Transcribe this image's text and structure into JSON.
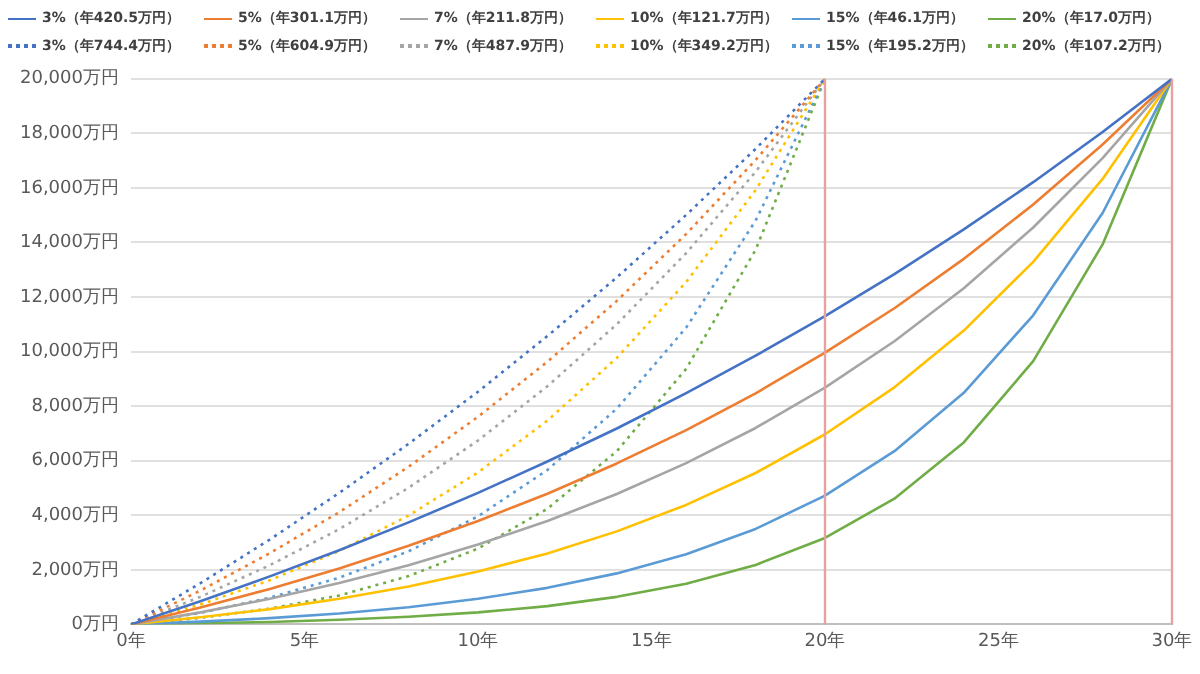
{
  "chart_data": {
    "type": "line",
    "legend": "top",
    "grid": "y",
    "marker": "none",
    "xlim": [
      0,
      30
    ],
    "xticks": [
      {
        "value": 0,
        "label": "0年"
      },
      {
        "value": 5,
        "label": "5年"
      },
      {
        "value": 10,
        "label": "10年"
      },
      {
        "value": 15,
        "label": "15年"
      },
      {
        "value": 20,
        "label": "20年"
      },
      {
        "value": 25,
        "label": "25年"
      },
      {
        "value": 30,
        "label": "30年"
      }
    ],
    "ylim": [
      0,
      20000
    ],
    "yticks": [
      {
        "value": 0,
        "label": "0万円"
      },
      {
        "value": 2000,
        "label": "2,000万円"
      },
      {
        "value": 4000,
        "label": "4,000万円"
      },
      {
        "value": 6000,
        "label": "6,000万円"
      },
      {
        "value": 8000,
        "label": "8,000万円"
      },
      {
        "value": 10000,
        "label": "10,000万円"
      },
      {
        "value": 12000,
        "label": "12,000万円"
      },
      {
        "value": 14000,
        "label": "14,000万円"
      },
      {
        "value": 16000,
        "label": "16,000万円"
      },
      {
        "value": 18000,
        "label": "18,000万円"
      },
      {
        "value": 20000,
        "label": "20,000万円"
      }
    ],
    "ref_lines": [
      {
        "axis": "x",
        "value": 20,
        "color": "#e8a0a0"
      },
      {
        "axis": "x",
        "value": 30,
        "color": "#e8a0a0"
      }
    ],
    "series": [
      {
        "name": "3%（年420.5万円）",
        "color": "#4472c4",
        "line_style": "solid",
        "x": [
          0,
          2,
          4,
          6,
          8,
          10,
          12,
          14,
          16,
          18,
          20,
          22,
          24,
          26,
          28,
          30
        ],
        "values": [
          0,
          850,
          1760,
          2720,
          3740,
          4820,
          5970,
          7180,
          8480,
          9850,
          11300,
          12840,
          14480,
          16210,
          18050,
          20000
        ]
      },
      {
        "name": "5%（年301.1万円）",
        "color": "#ed7d31",
        "line_style": "solid",
        "x": [
          0,
          2,
          4,
          6,
          8,
          10,
          12,
          14,
          16,
          18,
          20,
          22,
          24,
          26,
          28,
          30
        ],
        "values": [
          0,
          620,
          1300,
          2050,
          2880,
          3790,
          4790,
          5900,
          7120,
          8470,
          9960,
          11590,
          13400,
          15390,
          17590,
          20000
        ]
      },
      {
        "name": "7%（年211.8万円）",
        "color": "#a5a5a5",
        "line_style": "solid",
        "x": [
          0,
          2,
          4,
          6,
          8,
          10,
          12,
          14,
          16,
          18,
          20,
          22,
          24,
          26,
          28,
          30
        ],
        "values": [
          0,
          440,
          940,
          1520,
          2170,
          2930,
          3790,
          4780,
          5910,
          7200,
          8680,
          10380,
          12320,
          14550,
          17090,
          20000
        ]
      },
      {
        "name": "10%（年121.7万円）",
        "color": "#ffc000",
        "line_style": "solid",
        "x": [
          0,
          2,
          4,
          6,
          8,
          10,
          12,
          14,
          16,
          18,
          20,
          22,
          24,
          26,
          28,
          30
        ],
        "values": [
          0,
          260,
          560,
          940,
          1390,
          1940,
          2600,
          3410,
          4380,
          5550,
          6970,
          8690,
          10770,
          13290,
          16330,
          20000
        ]
      },
      {
        "name": "15%（年46.1万円）",
        "color": "#5b9bd5",
        "line_style": "solid",
        "x": [
          0,
          2,
          4,
          6,
          8,
          10,
          12,
          14,
          16,
          18,
          20,
          22,
          24,
          26,
          28,
          30
        ],
        "values": [
          0,
          100,
          230,
          400,
          630,
          940,
          1340,
          1870,
          2570,
          3500,
          4720,
          6350,
          8490,
          11330,
          15080,
          20000
        ]
      },
      {
        "name": "20%（年17.0万円）",
        "color": "#70ad47",
        "line_style": "solid",
        "x": [
          0,
          2,
          4,
          6,
          8,
          10,
          12,
          14,
          16,
          18,
          20,
          22,
          24,
          26,
          28,
          30
        ],
        "values": [
          0,
          40,
          90,
          170,
          280,
          440,
          670,
          1010,
          1490,
          2180,
          3170,
          4610,
          6670,
          9650,
          13930,
          20000
        ]
      },
      {
        "name": "3%（年744.4万円）",
        "color": "#4472c4",
        "line_style": "dotted",
        "x": [
          0,
          2,
          4,
          6,
          8,
          10,
          12,
          14,
          16,
          18,
          20
        ],
        "values": [
          0,
          1510,
          3110,
          4820,
          6620,
          8530,
          10570,
          12720,
          15010,
          17430,
          20000
        ]
      },
      {
        "name": "5%（年604.9万円）",
        "color": "#ed7d31",
        "line_style": "dotted",
        "x": [
          0,
          2,
          4,
          6,
          8,
          10,
          12,
          14,
          16,
          18,
          20
        ],
        "values": [
          0,
          1240,
          2610,
          4110,
          5780,
          7610,
          9630,
          11860,
          14310,
          17020,
          20000
        ]
      },
      {
        "name": "7%（年487.9万円）",
        "color": "#a5a5a5",
        "line_style": "dotted",
        "x": [
          0,
          2,
          4,
          6,
          8,
          10,
          12,
          14,
          16,
          18,
          20
        ],
        "values": [
          0,
          1010,
          2170,
          3490,
          5010,
          6740,
          8730,
          11000,
          13610,
          16590,
          20000
        ]
      },
      {
        "name": "10%（年349.2万円）",
        "color": "#ffc000",
        "line_style": "dotted",
        "x": [
          0,
          2,
          4,
          6,
          8,
          10,
          12,
          14,
          16,
          18,
          20
        ],
        "values": [
          0,
          730,
          1620,
          2690,
          3990,
          5570,
          7470,
          9770,
          12550,
          15920,
          20000
        ]
      },
      {
        "name": "15%（年195.2万円）",
        "color": "#5b9bd5",
        "line_style": "dotted",
        "x": [
          0,
          2,
          4,
          6,
          8,
          10,
          12,
          14,
          16,
          18,
          20
        ],
        "values": [
          0,
          420,
          980,
          1710,
          2680,
          3960,
          5660,
          7910,
          10880,
          14800,
          20000
        ]
      },
      {
        "name": "20%（年107.2万円）",
        "color": "#70ad47",
        "line_style": "dotted",
        "x": [
          0,
          2,
          4,
          6,
          8,
          10,
          12,
          14,
          16,
          18,
          20
        ],
        "values": [
          0,
          240,
          580,
          1060,
          1770,
          2780,
          4240,
          6350,
          9370,
          13730,
          20000
        ]
      }
    ]
  }
}
